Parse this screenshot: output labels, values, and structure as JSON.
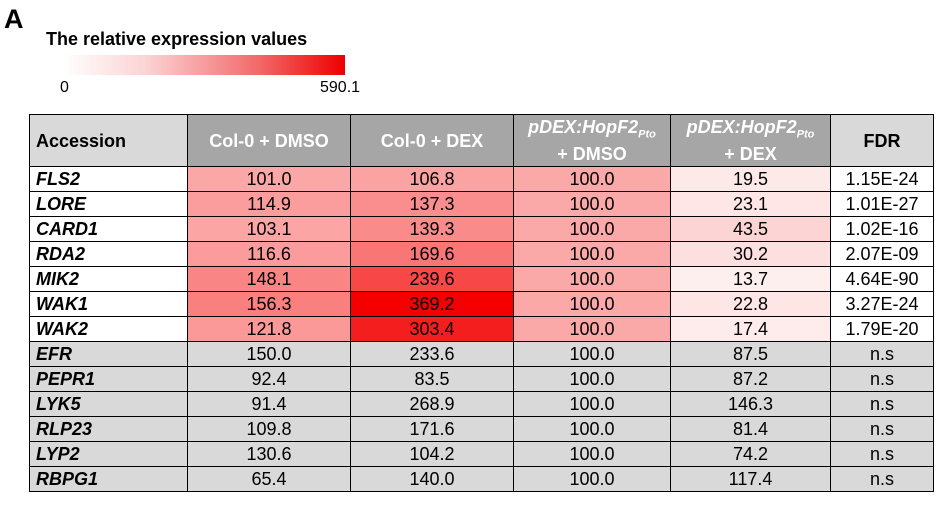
{
  "panel_label": "A",
  "legend": {
    "title": "The relative expression values",
    "min_label": "0",
    "max_label": "590.1",
    "min": 0,
    "max": 590.1,
    "color_low": "#ffffff",
    "color_high": "#ee0000"
  },
  "chart_data": {
    "type": "heatmap",
    "columns": {
      "accession": "Accession",
      "c1": "Col-0 + DMSO",
      "c2": "Col-0 + DEX",
      "c3_main": "pDEX:HopF2",
      "c3_sub": "Pto",
      "c3_line2": "+ DMSO",
      "c4_main": "pDEX:HopF2",
      "c4_sub": "Pto",
      "c4_line2": "+ DEX",
      "fdr": "FDR"
    },
    "rows": [
      {
        "gene": "FLS2",
        "values": [
          101.0,
          106.8,
          100.0,
          19.5
        ],
        "labels": [
          "101.0",
          "106.8",
          "100.0",
          "19.5"
        ],
        "fdr": "1.15E-24",
        "significant": true
      },
      {
        "gene": "LORE",
        "values": [
          114.9,
          137.3,
          100.0,
          23.1
        ],
        "labels": [
          "114.9",
          "137.3",
          "100.0",
          "23.1"
        ],
        "fdr": "1.01E-27",
        "significant": true
      },
      {
        "gene": "CARD1",
        "values": [
          103.1,
          139.3,
          100.0,
          43.5
        ],
        "labels": [
          "103.1",
          "139.3",
          "100.0",
          "43.5"
        ],
        "fdr": "1.02E-16",
        "significant": true
      },
      {
        "gene": "RDA2",
        "values": [
          116.6,
          169.6,
          100.0,
          30.2
        ],
        "labels": [
          "116.6",
          "169.6",
          "100.0",
          "30.2"
        ],
        "fdr": "2.07E-09",
        "significant": true
      },
      {
        "gene": "MIK2",
        "values": [
          148.1,
          239.6,
          100.0,
          13.7
        ],
        "labels": [
          "148.1",
          "239.6",
          "100.0",
          "13.7"
        ],
        "fdr": "4.64E-90",
        "significant": true
      },
      {
        "gene": "WAK1",
        "values": [
          156.3,
          369.2,
          100.0,
          22.8
        ],
        "labels": [
          "156.3",
          "369.2",
          "100.0",
          "22.8"
        ],
        "fdr": "3.27E-24",
        "significant": true
      },
      {
        "gene": "WAK2",
        "values": [
          121.8,
          303.4,
          100.0,
          17.4
        ],
        "labels": [
          "121.8",
          "303.4",
          "100.0",
          "17.4"
        ],
        "fdr": "1.79E-20",
        "significant": true
      },
      {
        "gene": "EFR",
        "values": [
          150.0,
          233.6,
          100.0,
          87.5
        ],
        "labels": [
          "150.0",
          "233.6",
          "100.0",
          "87.5"
        ],
        "fdr": "n.s",
        "significant": false
      },
      {
        "gene": "PEPR1",
        "values": [
          92.4,
          83.5,
          100.0,
          87.2
        ],
        "labels": [
          "92.4",
          "83.5",
          "100.0",
          "87.2"
        ],
        "fdr": "n.s",
        "significant": false
      },
      {
        "gene": "LYK5",
        "values": [
          91.4,
          268.9,
          100.0,
          146.3
        ],
        "labels": [
          "91.4",
          "268.9",
          "100.0",
          "146.3"
        ],
        "fdr": "n.s",
        "significant": false
      },
      {
        "gene": "RLP23",
        "values": [
          109.8,
          171.6,
          100.0,
          81.4
        ],
        "labels": [
          "109.8",
          "171.6",
          "100.0",
          "81.4"
        ],
        "fdr": "n.s",
        "significant": false
      },
      {
        "gene": "LYP2",
        "values": [
          130.6,
          104.2,
          100.0,
          74.2
        ],
        "labels": [
          "130.6",
          "104.2",
          "100.0",
          "74.2"
        ],
        "fdr": "n.s",
        "significant": false
      },
      {
        "gene": "RBPG1",
        "values": [
          65.4,
          140.0,
          100.0,
          117.4
        ],
        "labels": [
          "65.4",
          "140.0",
          "100.0",
          "117.4"
        ],
        "fdr": "n.s",
        "significant": false
      }
    ]
  }
}
